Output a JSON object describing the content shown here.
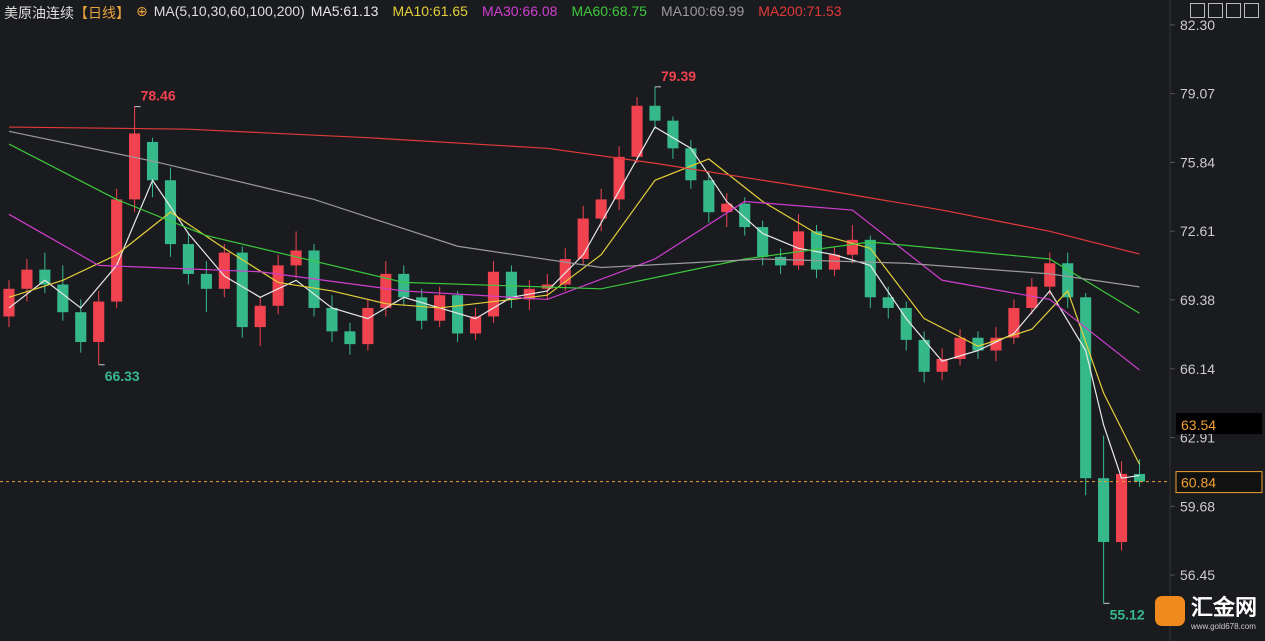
{
  "header": {
    "symbol": "美原油连续",
    "period": "【日线】",
    "indicator": "MA(5,10,30,60,100,200)"
  },
  "watermark": {
    "brand": "汇金网",
    "url": "www.gold678.com"
  },
  "chart_data": {
    "type": "candlestick",
    "xlim": [
      -0.5,
      64.7
    ],
    "ylim": [
      53.35,
      83.47
    ],
    "yticks": [
      {
        "value": 82.3,
        "label": "82.30"
      },
      {
        "value": 79.07,
        "label": "79.07"
      },
      {
        "value": 75.84,
        "label": "75.84"
      },
      {
        "value": 72.61,
        "label": "72.61"
      },
      {
        "value": 69.38,
        "label": "69.38"
      },
      {
        "value": 66.14,
        "label": "66.14"
      },
      {
        "value": 62.91,
        "label": "62.91"
      },
      {
        "value": 59.68,
        "label": "59.68"
      },
      {
        "value": 56.45,
        "label": "56.45"
      }
    ],
    "up_color": "#f0424f",
    "down_color": "#36b98a",
    "candles": {
      "open": [
        68.6,
        69.9,
        70.8,
        70.1,
        68.8,
        67.4,
        69.3,
        74.1,
        76.8,
        75.0,
        72.0,
        70.6,
        69.9,
        71.6,
        68.1,
        69.1,
        71.0,
        71.7,
        69.0,
        67.9,
        67.3,
        69.0,
        70.6,
        69.5,
        68.4,
        69.6,
        67.8,
        68.6,
        70.7,
        69.4,
        69.9,
        70.1,
        71.3,
        73.2,
        74.1,
        76.1,
        78.5,
        77.8,
        76.5,
        75.0,
        73.5,
        73.9,
        72.8,
        71.4,
        71.0,
        72.6,
        70.8,
        71.5,
        72.2,
        69.5,
        69.0,
        67.5,
        66.0,
        66.6,
        67.6,
        67.0,
        67.6,
        69.0,
        70.0,
        71.1,
        69.5,
        61.0,
        58.0,
        61.2
      ],
      "high": [
        70.3,
        71.3,
        71.6,
        71.0,
        69.4,
        69.8,
        74.6,
        78.46,
        77.0,
        75.6,
        72.5,
        71.2,
        72.0,
        71.9,
        69.5,
        71.5,
        72.6,
        72.0,
        69.6,
        68.3,
        69.4,
        71.2,
        71.0,
        69.9,
        70.0,
        69.8,
        69.0,
        71.2,
        71.0,
        70.3,
        70.6,
        71.8,
        73.8,
        74.6,
        76.6,
        78.9,
        79.39,
        78.0,
        76.9,
        75.4,
        74.4,
        74.2,
        73.1,
        71.8,
        73.4,
        72.9,
        71.9,
        72.9,
        72.4,
        70.0,
        69.3,
        67.9,
        67.1,
        68.0,
        67.9,
        68.1,
        69.4,
        70.4,
        71.6,
        71.6,
        69.7,
        63.0,
        61.8,
        61.9
      ],
      "low": [
        68.1,
        69.3,
        69.7,
        68.4,
        66.9,
        66.33,
        69.0,
        73.5,
        74.2,
        71.4,
        70.1,
        68.8,
        69.5,
        67.6,
        67.2,
        68.7,
        70.4,
        68.6,
        67.4,
        66.8,
        67.0,
        68.6,
        69.1,
        68.0,
        68.1,
        67.4,
        67.5,
        68.3,
        69.0,
        68.9,
        69.4,
        69.8,
        71.0,
        72.6,
        73.6,
        75.8,
        77.4,
        76.0,
        74.6,
        73.0,
        72.8,
        72.4,
        71.0,
        70.6,
        70.8,
        70.4,
        70.5,
        71.1,
        69.0,
        68.5,
        67.0,
        65.5,
        65.6,
        66.3,
        66.6,
        66.5,
        67.3,
        68.7,
        69.6,
        69.0,
        60.2,
        55.12,
        57.6,
        60.6
      ],
      "close": [
        69.9,
        70.8,
        70.1,
        68.8,
        67.4,
        69.3,
        74.1,
        77.2,
        75.0,
        72.0,
        70.6,
        69.9,
        71.6,
        68.1,
        69.1,
        71.0,
        71.7,
        69.0,
        67.9,
        67.3,
        69.0,
        70.6,
        69.5,
        68.4,
        69.6,
        67.8,
        68.6,
        70.7,
        69.4,
        69.9,
        70.1,
        71.3,
        73.2,
        74.1,
        76.1,
        78.5,
        77.8,
        76.5,
        75.0,
        73.5,
        73.9,
        72.8,
        71.4,
        71.0,
        72.6,
        70.8,
        71.5,
        72.2,
        69.5,
        69.0,
        67.5,
        66.0,
        66.6,
        67.6,
        67.0,
        67.6,
        69.0,
        70.0,
        71.1,
        69.5,
        61.0,
        58.0,
        61.2,
        60.84
      ]
    },
    "series": [
      {
        "name": "MA5",
        "label": "MA5:61.13",
        "color": "#e8e8e8",
        "x": [
          0,
          2,
          4,
          6,
          8,
          10,
          12,
          14,
          16,
          18,
          20,
          22,
          24,
          26,
          28,
          30,
          32,
          34,
          36,
          38,
          40,
          42,
          44,
          46,
          48,
          50,
          52,
          54,
          56,
          58,
          60,
          61,
          62,
          63
        ],
        "values": [
          69.0,
          70.3,
          69.0,
          71.0,
          75.0,
          72.5,
          70.5,
          69.5,
          70.3,
          69.0,
          68.5,
          69.5,
          69.0,
          68.5,
          69.5,
          69.8,
          71.5,
          74.5,
          77.5,
          76.5,
          74.0,
          72.5,
          71.8,
          71.5,
          71.0,
          68.5,
          66.5,
          67.0,
          67.8,
          69.8,
          67.0,
          63.5,
          61.0,
          61.13
        ]
      },
      {
        "name": "MA10",
        "label": "MA10:61.65",
        "color": "#e3cf3a",
        "x": [
          0,
          3,
          6,
          9,
          12,
          15,
          18,
          21,
          24,
          27,
          30,
          33,
          36,
          39,
          42,
          45,
          48,
          51,
          54,
          57,
          59,
          61,
          63
        ],
        "values": [
          69.5,
          70.3,
          71.5,
          73.5,
          71.8,
          70.2,
          69.8,
          69.2,
          69.0,
          69.3,
          69.6,
          71.5,
          75.0,
          76.0,
          74.0,
          72.5,
          71.8,
          68.5,
          67.2,
          68.0,
          69.8,
          65.0,
          61.65
        ]
      },
      {
        "name": "MA30",
        "label": "MA30:66.08",
        "color": "#d03ed0",
        "x": [
          0,
          5,
          14,
          22,
          30,
          36,
          41,
          47,
          52,
          58,
          63
        ],
        "values": [
          73.4,
          71.0,
          70.7,
          69.8,
          69.4,
          71.3,
          74.0,
          73.6,
          70.3,
          69.4,
          66.08
        ]
      },
      {
        "name": "MA60",
        "label": "MA60:68.75",
        "color": "#3cc83c",
        "x": [
          0,
          6,
          11,
          22,
          33,
          41,
          48,
          58,
          63
        ],
        "values": [
          76.7,
          74.1,
          72.4,
          70.2,
          69.9,
          71.3,
          72.1,
          71.3,
          68.75
        ]
      },
      {
        "name": "MA100",
        "label": "MA100:69.99",
        "color": "#9a9a9a",
        "x": [
          0,
          8,
          17,
          25,
          33,
          42,
          50,
          58,
          63
        ],
        "values": [
          77.3,
          75.9,
          74.1,
          71.9,
          70.9,
          71.3,
          71.1,
          70.6,
          69.99
        ]
      },
      {
        "name": "MA200",
        "label": "MA200:71.53",
        "color": "#e23a3a",
        "x": [
          0,
          10,
          20,
          30,
          36,
          45,
          52,
          58,
          63
        ],
        "values": [
          77.5,
          77.4,
          77.0,
          76.5,
          75.8,
          74.6,
          73.6,
          72.6,
          71.53
        ]
      }
    ],
    "extremes": [
      {
        "x": 7,
        "value": 78.46,
        "color": "#f0424f"
      },
      {
        "x": 36,
        "value": 79.39,
        "color": "#f0424f"
      },
      {
        "x": 5,
        "value": 66.33,
        "color": "#36b98a"
      },
      {
        "x": 61,
        "value": 55.12,
        "color": "#36b98a"
      }
    ],
    "current_price": {
      "value": 60.84,
      "color": "#f0a030"
    },
    "marker_price": 63.54
  }
}
